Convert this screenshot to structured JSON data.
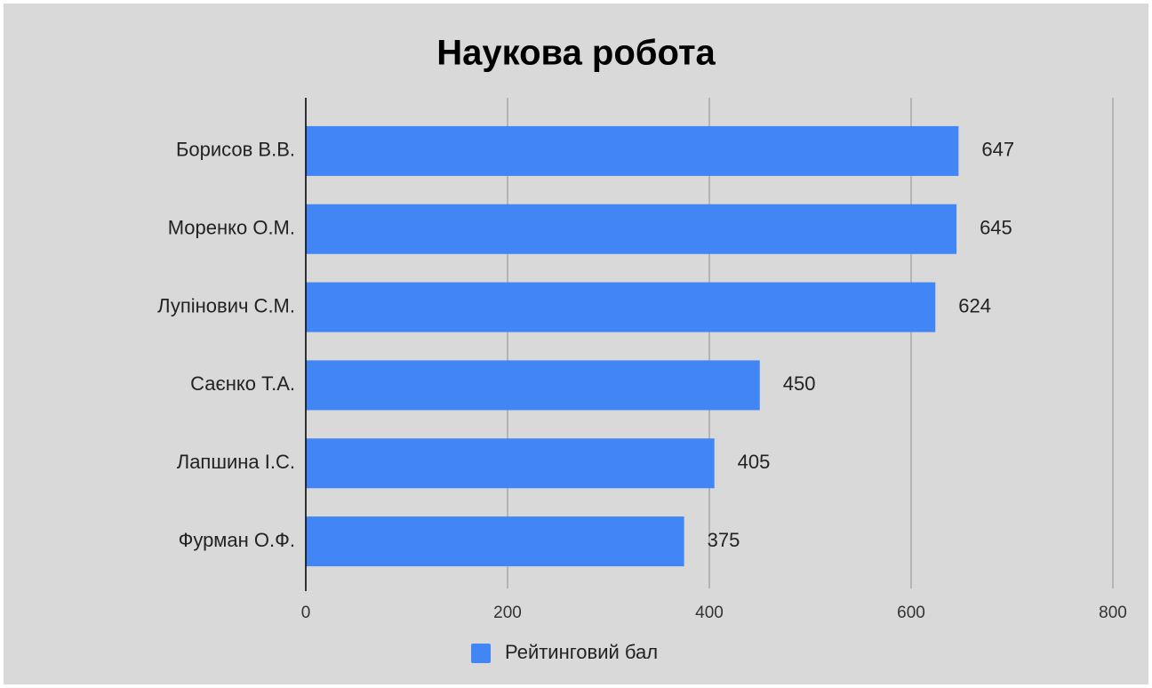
{
  "chart_data": {
    "type": "bar",
    "orientation": "horizontal",
    "title": "Наукова робота",
    "categories": [
      "Борисов В.В.",
      "Моренко О.М.",
      "Лупінович С.М.",
      "Саєнко Т.А.",
      "Лапшина І.С.",
      "Фурман О.Ф."
    ],
    "series": [
      {
        "name": "Рейтинговий бал",
        "color": "#4285f4",
        "values": [
          647,
          645,
          624,
          450,
          405,
          375
        ]
      }
    ],
    "xlim": [
      0,
      800
    ],
    "xticks": [
      0,
      200,
      400,
      600,
      800
    ],
    "grid": true,
    "legend": "bottom"
  }
}
